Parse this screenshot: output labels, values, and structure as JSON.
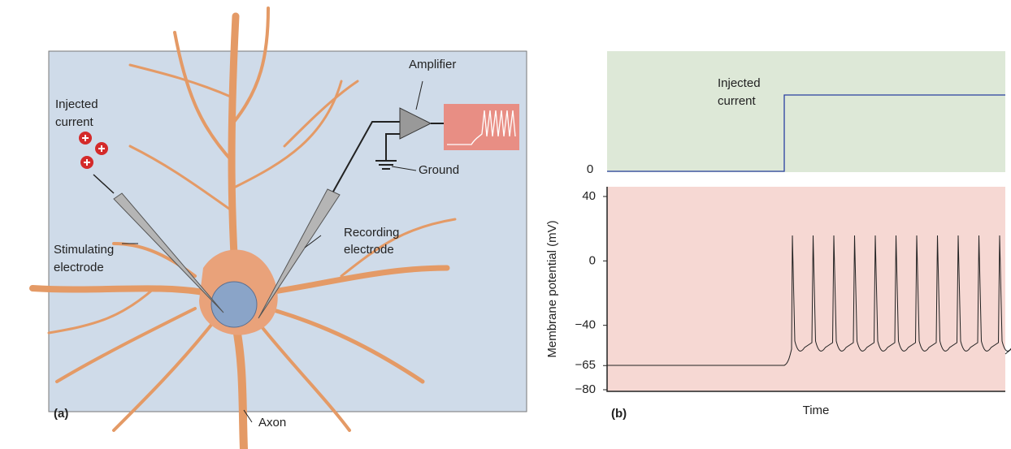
{
  "panel_a": {
    "label": "(a)",
    "injected_current": [
      "Injected",
      "current"
    ],
    "amplifier": "Amplifier",
    "ground": "Ground",
    "stimulating_electrode": [
      "Stimulating",
      "electrode"
    ],
    "recording_electrode": [
      "Recording",
      "electrode"
    ],
    "axon": "Axon"
  },
  "panel_b": {
    "label": "(b)",
    "injected_current": [
      "Injected",
      "current"
    ],
    "current_yticks": [
      0
    ],
    "y_axis_label": "Membrane potential (mV)",
    "x_axis_label": "Time",
    "ylim": [
      -80,
      40
    ],
    "yticks": [
      40,
      0,
      {
        "value": -40,
        "label": "−40"
      },
      {
        "value": -65,
        "label": "−65"
      },
      {
        "value": -80,
        "label": "−80"
      }
    ]
  }
}
